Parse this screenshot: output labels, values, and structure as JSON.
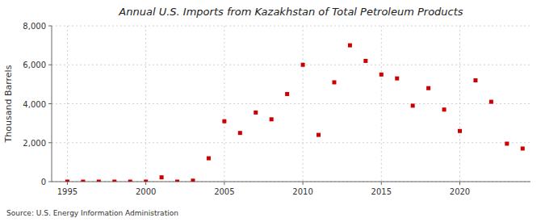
{
  "chart_data": {
    "type": "scatter",
    "title": "Annual U.S. Imports from Kazakhstan of Total Petroleum Products",
    "ylabel": "Thousand Barrels",
    "source": "Source: U.S. Energy Information Administration",
    "x": [
      1995,
      1996,
      1997,
      1998,
      1999,
      2000,
      2001,
      2002,
      2003,
      2004,
      2005,
      2006,
      2007,
      2008,
      2009,
      2010,
      2011,
      2012,
      2013,
      2014,
      2015,
      2016,
      2017,
      2018,
      2019,
      2020,
      2021,
      2022,
      2023,
      2024
    ],
    "values": [
      0,
      0,
      0,
      0,
      0,
      0,
      220,
      0,
      50,
      1200,
      3100,
      2500,
      3550,
      3200,
      4500,
      6000,
      2400,
      5100,
      7000,
      6200,
      5500,
      5300,
      3900,
      4800,
      3700,
      2600,
      5200,
      4100,
      1950,
      1700
    ],
    "color": "#cc0000",
    "marker": "square",
    "xlim": [
      1994.0,
      2024.5
    ],
    "xticks": [
      1995,
      2000,
      2005,
      2010,
      2015,
      2020
    ],
    "ylim": [
      0,
      8000
    ],
    "yticks": [
      0,
      {
        "value": 2000,
        "label": "2,000"
      },
      {
        "value": 4000,
        "label": "4,000"
      },
      {
        "value": 6000,
        "label": "6,000"
      },
      {
        "value": 8000,
        "label": "8,000"
      }
    ],
    "grid": true
  }
}
